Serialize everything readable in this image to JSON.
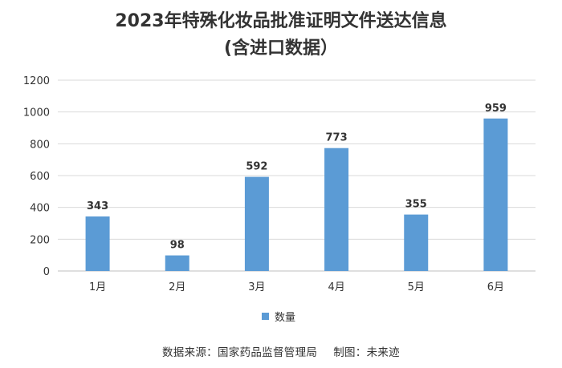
{
  "chart_data": {
    "type": "bar",
    "title": "2023年特殊化妆品批准证明文件送达信息",
    "subtitle": "(含进口数据）",
    "categories": [
      "1月",
      "2月",
      "3月",
      "4月",
      "5月",
      "6月"
    ],
    "series": [
      {
        "name": "数量",
        "values": [
          343,
          98,
          592,
          773,
          355,
          959
        ]
      }
    ],
    "ylim": [
      0,
      1200
    ],
    "yticks": [
      "0",
      "200",
      "400",
      "600",
      "800",
      "1000",
      "1200"
    ],
    "xlabel": "",
    "ylabel": "",
    "grid": true,
    "legend_position": "bottom",
    "data_labels": true,
    "bar_color": "#5b9bd5"
  },
  "footer": {
    "source": "数据来源：国家药品监督管理局",
    "credit": "制图：未来迹"
  }
}
